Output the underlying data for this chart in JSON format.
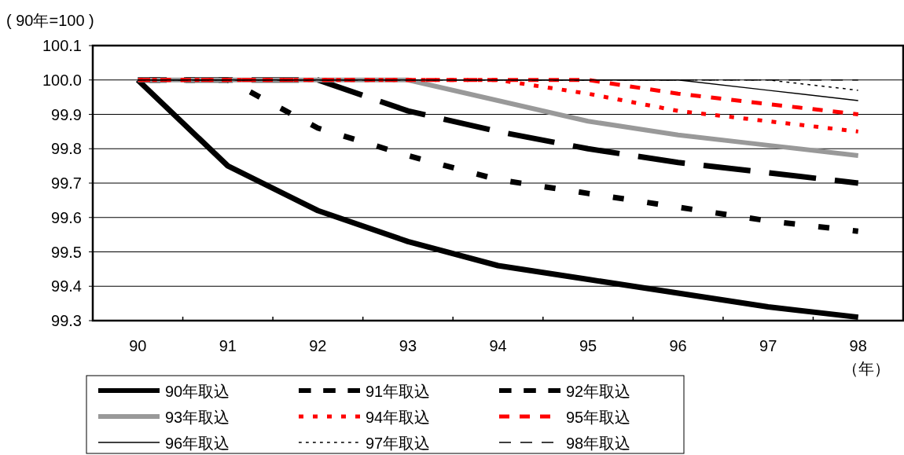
{
  "chart_data": {
    "type": "line",
    "ylabel": "( 90年=100 )",
    "xlabel": "（年）",
    "categories": [
      "90",
      "91",
      "92",
      "93",
      "94",
      "95",
      "96",
      "97",
      "98"
    ],
    "ylim": [
      99.3,
      100.1
    ],
    "yticks": [
      99.3,
      99.4,
      99.5,
      99.6,
      99.7,
      99.8,
      99.9,
      {
        "value": 100,
        "label": "100.0"
      },
      100.1
    ],
    "grid": "y",
    "legend": "bottom",
    "marker": "none",
    "series": [
      {
        "name": "90年取込",
        "color": "#000000",
        "line_style": "solid",
        "values": [
          100,
          99.75,
          99.62,
          99.53,
          99.46,
          99.42,
          99.38,
          99.34,
          99.31
        ]
      },
      {
        "name": "91年取込",
        "color": "#000000",
        "line_style": "dashed",
        "values": [
          100,
          100,
          99.86,
          99.78,
          99.71,
          99.67,
          99.63,
          99.59,
          99.56
        ]
      },
      {
        "name": "92年取込",
        "color": "#000000",
        "line_style": "dashed",
        "values": [
          100,
          100,
          100,
          99.91,
          99.85,
          99.8,
          99.76,
          99.73,
          99.7
        ]
      },
      {
        "name": "93年取込",
        "color": "#999999",
        "line_style": "solid",
        "values": [
          100,
          100,
          100,
          100,
          99.94,
          99.88,
          99.84,
          99.81,
          99.78
        ]
      },
      {
        "name": "94年取込",
        "color": "#ff0000",
        "line_style": "dotted",
        "values": [
          100,
          100,
          100,
          100,
          100,
          99.96,
          99.91,
          99.88,
          99.85
        ]
      },
      {
        "name": "95年取込",
        "color": "#ff0000",
        "line_style": "dashed",
        "values": [
          100,
          100,
          100,
          100,
          100,
          100,
          99.96,
          99.93,
          99.9
        ]
      },
      {
        "name": "96年取込",
        "color": "#000000",
        "line_style": "solid",
        "values": [
          100,
          100,
          100,
          100,
          100,
          100,
          100,
          99.97,
          99.94
        ]
      },
      {
        "name": "97年取込",
        "color": "#000000",
        "line_style": "dotted",
        "values": [
          100,
          100,
          100,
          100,
          100,
          100,
          100,
          100,
          99.97
        ]
      },
      {
        "name": "98年取込",
        "color": "#000000",
        "line_style": "dashed",
        "values": [
          100,
          100,
          100,
          100,
          100,
          100,
          100,
          100,
          100
        ]
      }
    ]
  }
}
